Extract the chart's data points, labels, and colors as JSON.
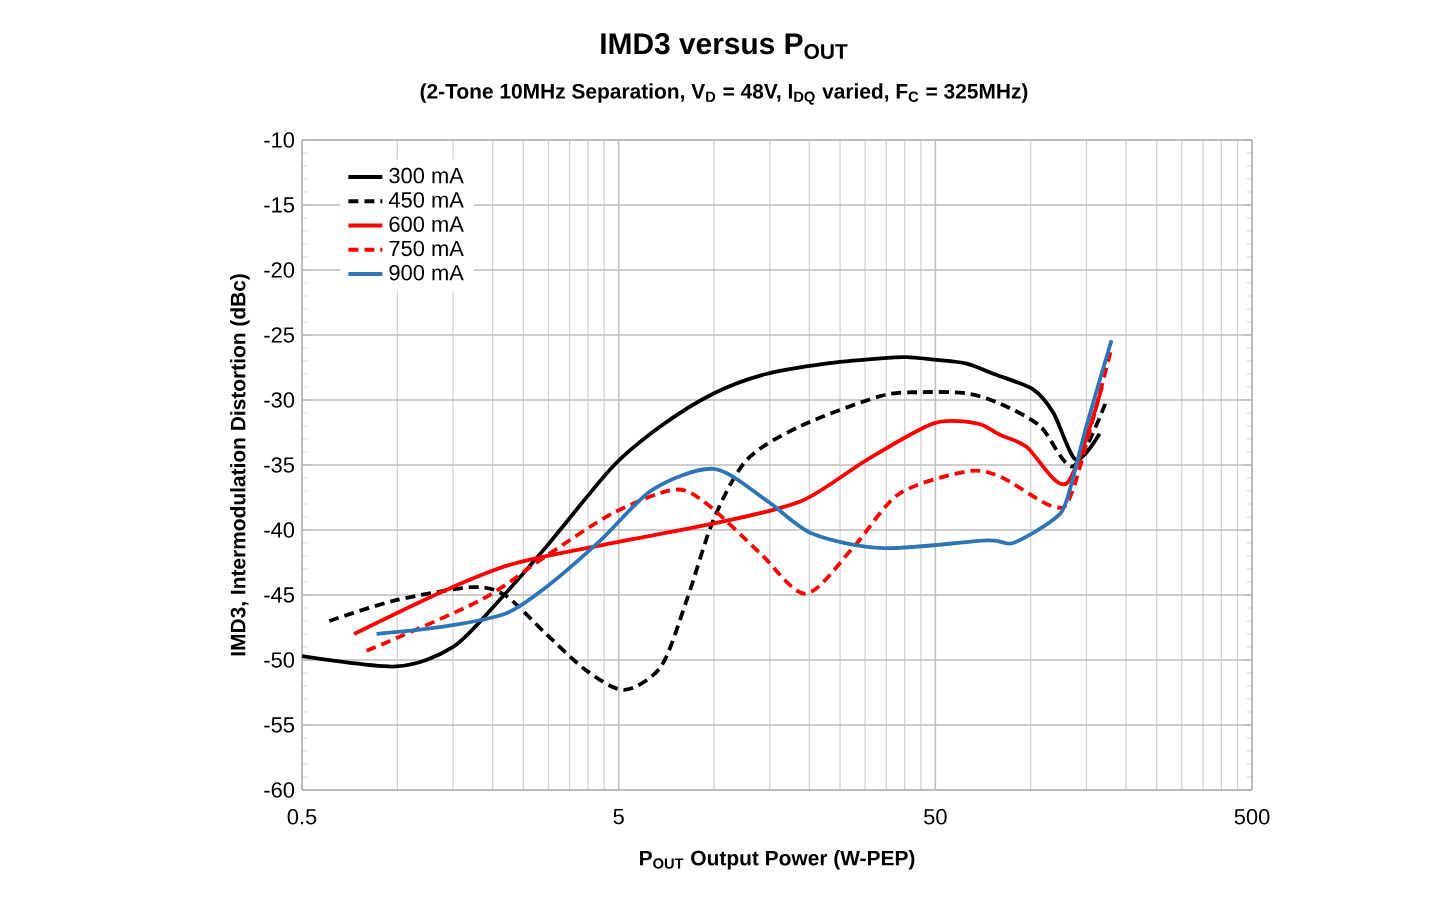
{
  "chart_data": {
    "type": "line",
    "title": "IMD3 versus P$_{OUT}$",
    "subtitle": "(2-Tone 10MHz Separation, V$_{D}$ = 48V, I$_{DQ}$ varied, F$_{C}$ = 325MHz)",
    "xlabel": "P$_{OUT}$  Output Power (W-PEP)",
    "ylabel": "IMD3, Intermodulation Distortion (dBc)",
    "log": "x",
    "xlim": [
      0.5,
      500
    ],
    "xticks": [
      0.5,
      5,
      50,
      500
    ],
    "ylim": [
      -60,
      -10
    ],
    "yticks": [
      -60,
      -55,
      -50,
      -45,
      -40,
      -35,
      -30,
      -25,
      -20,
      -15,
      -10
    ],
    "grid": true,
    "legend": "top left",
    "marker": "none",
    "series": [
      {
        "name": "300 mA",
        "color": "#000000",
        "line_style": "solid",
        "x": [
          0.5,
          0.99,
          1.5,
          2.1,
          2.95,
          4.8,
          6.8,
          9.97,
          14.6,
          22.5,
          33.5,
          40.5,
          49.4,
          62.8,
          76.6,
          102,
          118,
          139,
          165
        ],
        "values": [
          -49.7,
          -50.5,
          -49,
          -45.4,
          -41.3,
          -35.1,
          -32,
          -29.5,
          -28,
          -27.2,
          -26.8,
          -26.7,
          -26.9,
          -27.2,
          -28,
          -29.2,
          -31,
          -34.6,
          -32.6
        ]
      },
      {
        "name": "450 mA",
        "color": "#000000",
        "line_style": "dashed",
        "x": [
          0.61,
          0.99,
          1.74,
          2.21,
          2.95,
          3.95,
          5.2,
          6.8,
          8.2,
          9.97,
          12.7,
          18.8,
          33.5,
          44.8,
          62.8,
          80.2,
          107,
          136,
          172
        ],
        "values": [
          -47,
          -45.4,
          -44.4,
          -45.1,
          -48,
          -50.8,
          -52.3,
          -50.5,
          -45.4,
          -39.2,
          -34.6,
          -32,
          -29.7,
          -29.4,
          -29.5,
          -30.3,
          -32,
          -35.1,
          -30.3
        ]
      },
      {
        "name": "600 mA",
        "color": "#ff0000",
        "line_style": "solid",
        "x": [
          0.73,
          1.43,
          2.33,
          4.8,
          9.97,
          18.8,
          30.4,
          49.4,
          67.6,
          80.2,
          97,
          130,
          168
        ],
        "values": [
          -48,
          -44.6,
          -42.6,
          -41,
          -39.5,
          -37.8,
          -34.6,
          -31.8,
          -31.8,
          -32.7,
          -33.6,
          -36.4,
          -29
        ]
      },
      {
        "name": "750 mA",
        "color": "#ff0000",
        "line_style": "dashed",
        "x": [
          0.8,
          1.83,
          2.95,
          4.8,
          7.5,
          9.5,
          14,
          19.5,
          27.6,
          38.5,
          62.8,
          80.2,
          118,
          136,
          180
        ],
        "values": [
          -49.3,
          -45.4,
          -42,
          -38.7,
          -36.9,
          -38,
          -41.8,
          -44.9,
          -41.3,
          -37.2,
          -35.5,
          -35.9,
          -38.2,
          -36.9,
          -26
        ]
      },
      {
        "name": "900 mA",
        "color": "#2e75b6",
        "line_style": "solid",
        "x": [
          0.86,
          1.43,
          2.21,
          2.95,
          4.38,
          6.4,
          9.97,
          14.6,
          20.5,
          34.3,
          72.8,
          88,
          118,
          130,
          150,
          180
        ],
        "values": [
          -48,
          -47.4,
          -46.4,
          -44.4,
          -40.8,
          -36.9,
          -35.3,
          -37.7,
          -40.3,
          -41.4,
          -40.8,
          -41,
          -39.2,
          -37.7,
          -32,
          -25.4
        ]
      }
    ]
  }
}
